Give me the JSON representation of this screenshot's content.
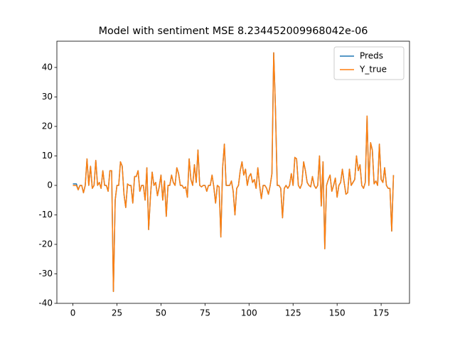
{
  "chart_data": {
    "type": "line",
    "title": "Model with sentiment MSE 8.234452009968042e-06",
    "x": [
      0,
      1,
      2,
      3,
      4,
      5,
      6,
      7,
      8,
      9,
      10,
      11,
      12,
      13,
      14,
      15,
      16,
      17,
      18,
      19,
      20,
      21,
      22,
      23,
      24,
      25,
      26,
      27,
      28,
      29,
      30,
      31,
      32,
      33,
      34,
      35,
      36,
      37,
      38,
      39,
      40,
      41,
      42,
      43,
      44,
      45,
      46,
      47,
      48,
      49,
      50,
      51,
      52,
      53,
      54,
      55,
      56,
      57,
      58,
      59,
      60,
      61,
      62,
      63,
      64,
      65,
      66,
      67,
      68,
      69,
      70,
      71,
      72,
      73,
      74,
      75,
      76,
      77,
      78,
      79,
      80,
      81,
      82,
      83,
      84,
      85,
      86,
      87,
      88,
      89,
      90,
      91,
      92,
      93,
      94,
      95,
      96,
      97,
      98,
      99,
      100,
      101,
      102,
      103,
      104,
      105,
      106,
      107,
      108,
      109,
      110,
      111,
      112,
      113,
      114,
      115,
      116,
      117,
      118,
      119,
      120,
      121,
      122,
      123,
      124,
      125,
      126,
      127,
      128,
      129,
      130,
      131,
      132,
      133,
      134,
      135,
      136,
      137,
      138,
      139,
      140,
      141,
      142,
      143,
      144,
      145,
      146,
      147,
      148,
      149,
      150,
      151,
      152,
      153,
      154,
      155,
      156,
      157,
      158,
      159,
      160,
      161,
      162,
      163,
      164,
      165,
      166,
      167,
      168,
      169,
      170,
      171,
      172,
      173,
      174,
      175,
      176,
      177,
      178,
      179,
      180,
      181,
      182
    ],
    "series": [
      {
        "name": "Preds",
        "color": "#1f77b4",
        "values": [
          0.5,
          0.5,
          0.5,
          -1.5,
          0,
          0,
          -2.5,
          0,
          9,
          0,
          6.5,
          -1,
          0,
          8.5,
          0,
          1,
          -1,
          5,
          0,
          0,
          -2,
          5,
          5,
          -36,
          -5,
          0,
          0,
          8,
          6.5,
          -3,
          -7.5,
          0.5,
          0,
          0,
          -6,
          3,
          3,
          5,
          -2,
          0,
          0,
          -5,
          6,
          -15,
          -4,
          4.5,
          0,
          1,
          -3.5,
          -0.5,
          3.5,
          -5,
          1.5,
          -10.5,
          0,
          0,
          3.5,
          1,
          0,
          6,
          4,
          0,
          0,
          -1,
          -0.5,
          -4,
          9,
          2,
          0,
          7,
          1,
          12,
          0,
          -0.5,
          0,
          0,
          -2,
          0,
          0,
          3.5,
          -0.5,
          -6,
          0,
          -0.5,
          -17.5,
          6,
          14,
          0,
          0,
          0,
          1.5,
          -2,
          -10,
          -1,
          0,
          5,
          8,
          3.5,
          5.5,
          0,
          3,
          4,
          1,
          2,
          -1,
          6,
          0,
          -4.5,
          0,
          0,
          -1,
          -3,
          0,
          4,
          45,
          26,
          0,
          0,
          -1,
          -11,
          -1,
          0,
          -1,
          0,
          4,
          0,
          9.5,
          9,
          0,
          -1,
          0.5,
          8,
          5,
          1,
          0,
          -0.5,
          3,
          0,
          -1,
          0,
          10,
          -7,
          8,
          -21.5,
          0,
          2,
          3.5,
          -2,
          0,
          2.5,
          -4,
          0,
          1,
          5.5,
          1,
          -3,
          -2.5,
          5.5,
          0,
          1,
          2,
          10,
          5,
          7,
          0,
          -1,
          1,
          23.5,
          0,
          14.5,
          12,
          0.5,
          1.5,
          0,
          14,
          2,
          1,
          6,
          0,
          -1,
          -1,
          -15.5,
          3.5
        ]
      },
      {
        "name": "Y_true",
        "color": "#ff7f0e",
        "values": [
          0,
          0,
          0,
          -1.5,
          0,
          0,
          -2.5,
          0,
          9,
          0,
          6.5,
          -1,
          0,
          8.5,
          0,
          1,
          -1,
          5,
          0,
          0,
          -2,
          5,
          5,
          -36,
          -5,
          0,
          0,
          8,
          6.5,
          -3,
          -7.5,
          0.5,
          0,
          0,
          -6,
          3,
          3,
          5,
          -2,
          0,
          0,
          -5,
          6,
          -15,
          -4,
          4.5,
          0,
          1,
          -3.5,
          -0.5,
          3.5,
          -5,
          1.5,
          -10.5,
          0,
          0,
          3.5,
          1,
          0,
          6,
          4,
          0,
          0,
          -1,
          -0.5,
          -4,
          9,
          2,
          0,
          7,
          1,
          12,
          0,
          -0.5,
          0,
          0,
          -2,
          0,
          0,
          3.5,
          -0.5,
          -6,
          0,
          -0.5,
          -17.5,
          6,
          14,
          0,
          0,
          0,
          1.5,
          -2,
          -10,
          -1,
          0,
          5,
          8,
          3.5,
          5.5,
          0,
          3,
          4,
          1,
          2,
          -1,
          6,
          0,
          -4.5,
          0,
          0,
          -1,
          -3,
          0,
          4,
          45,
          26,
          0,
          0,
          -1,
          -11,
          -1,
          0,
          -1,
          0,
          4,
          0,
          9.5,
          9,
          0,
          -1,
          0.5,
          8,
          5,
          1,
          0,
          -0.5,
          3,
          0,
          -1,
          0,
          10,
          -7,
          8,
          -21.5,
          0,
          2,
          3.5,
          -2,
          0,
          2.5,
          -4,
          0,
          1,
          5.5,
          1,
          -3,
          -2.5,
          5.5,
          0,
          1,
          2,
          10,
          5,
          7,
          0,
          -1,
          1,
          23.5,
          0,
          14.5,
          12,
          0.5,
          1.5,
          0,
          14,
          2,
          1,
          6,
          0,
          -1,
          -1,
          -15.5,
          3.5
        ]
      }
    ],
    "xlim": [
      -9.1,
      191.1
    ],
    "xticks": [
      0,
      25,
      50,
      75,
      100,
      125,
      150,
      175
    ],
    "ylim": [
      -40,
      48.9
    ],
    "yticks": [
      -40,
      -30,
      -20,
      -10,
      0,
      10,
      20,
      30,
      40
    ],
    "legend": "upper right"
  }
}
